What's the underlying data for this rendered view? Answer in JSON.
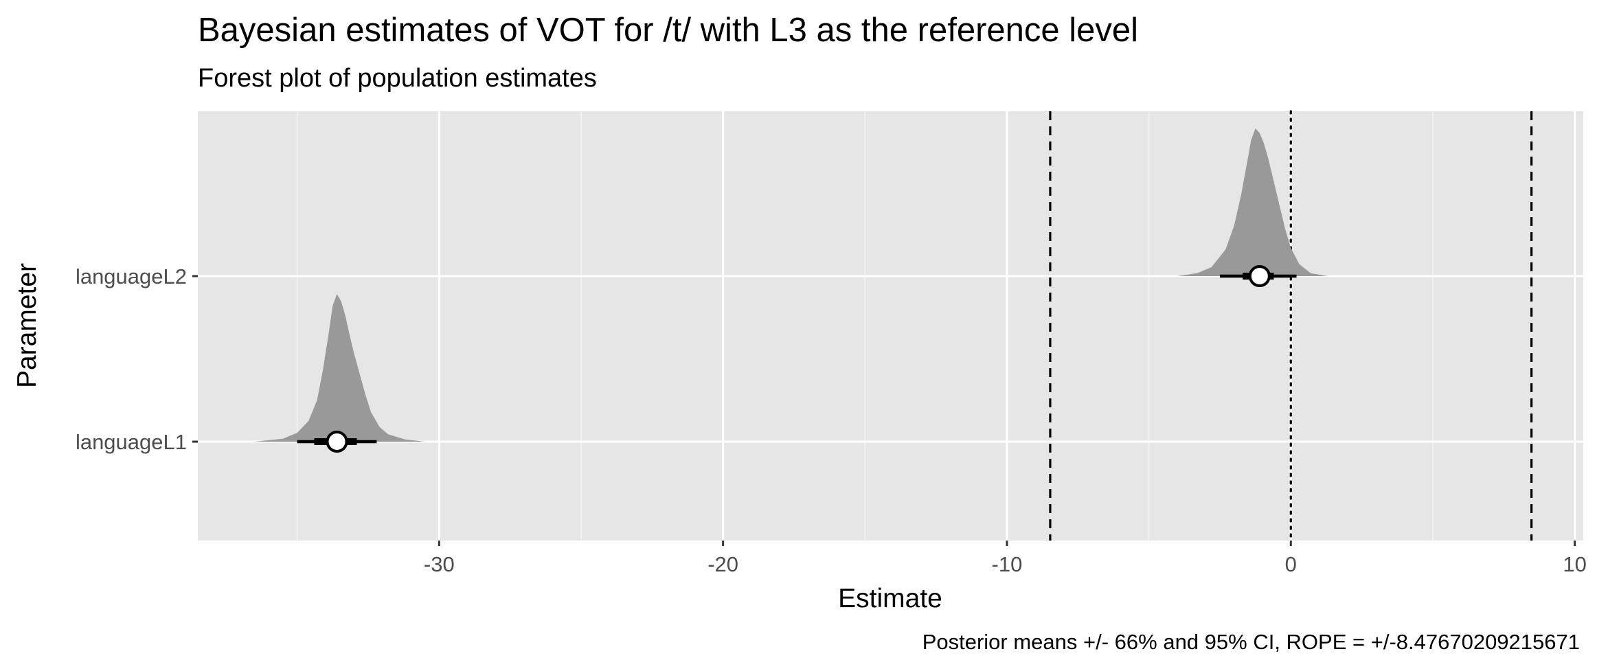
{
  "chart_data": {
    "type": "forest",
    "title": "Bayesian estimates of VOT for /t/ with L3 as the reference level",
    "subtitle": "Forest plot of population estimates",
    "xlabel": "Estimate",
    "ylabel": "Parameter",
    "caption": "Posterior means +/- 66% and 95% CI, ROPE = +/-8.47670209215671",
    "xlim": [
      -38.5,
      10.3
    ],
    "x_ticks": [
      -30,
      -20,
      -10,
      0,
      10
    ],
    "x_tick_labels": [
      "-30",
      "-20",
      "-10",
      "0",
      "10"
    ],
    "grid": true,
    "rope": [
      -8.47670209215671,
      8.47670209215671
    ],
    "reference_line": 0,
    "categories": [
      "languageL1",
      "languageL2"
    ],
    "estimates": [
      {
        "parameter": "languageL1",
        "mean": -33.6,
        "ci66": [
          -34.4,
          -32.9
        ],
        "ci95": [
          -35.0,
          -32.2
        ],
        "density": {
          "x": [
            -36.5,
            -35.5,
            -35.0,
            -34.6,
            -34.3,
            -34.1,
            -33.9,
            -33.75,
            -33.6,
            -33.45,
            -33.3,
            -33.15,
            -33.0,
            -32.8,
            -32.6,
            -32.4,
            -32.1,
            -31.8,
            -31.2,
            -30.5
          ],
          "y": [
            0.0,
            0.02,
            0.06,
            0.14,
            0.28,
            0.48,
            0.72,
            0.92,
            1.0,
            0.95,
            0.85,
            0.72,
            0.6,
            0.46,
            0.32,
            0.2,
            0.1,
            0.05,
            0.015,
            0.0
          ]
        }
      },
      {
        "parameter": "languageL2",
        "mean": -1.1,
        "ci66": [
          -1.7,
          -0.6
        ],
        "ci95": [
          -2.5,
          0.2
        ],
        "density": {
          "x": [
            -4.0,
            -3.3,
            -2.8,
            -2.3,
            -2.0,
            -1.75,
            -1.55,
            -1.4,
            -1.25,
            -1.1,
            -0.95,
            -0.8,
            -0.6,
            -0.4,
            -0.2,
            0.0,
            0.3,
            0.7,
            1.3
          ],
          "y": [
            0.0,
            0.02,
            0.06,
            0.18,
            0.34,
            0.55,
            0.76,
            0.92,
            1.0,
            0.97,
            0.9,
            0.8,
            0.64,
            0.48,
            0.32,
            0.19,
            0.08,
            0.02,
            0.0
          ]
        }
      }
    ]
  }
}
